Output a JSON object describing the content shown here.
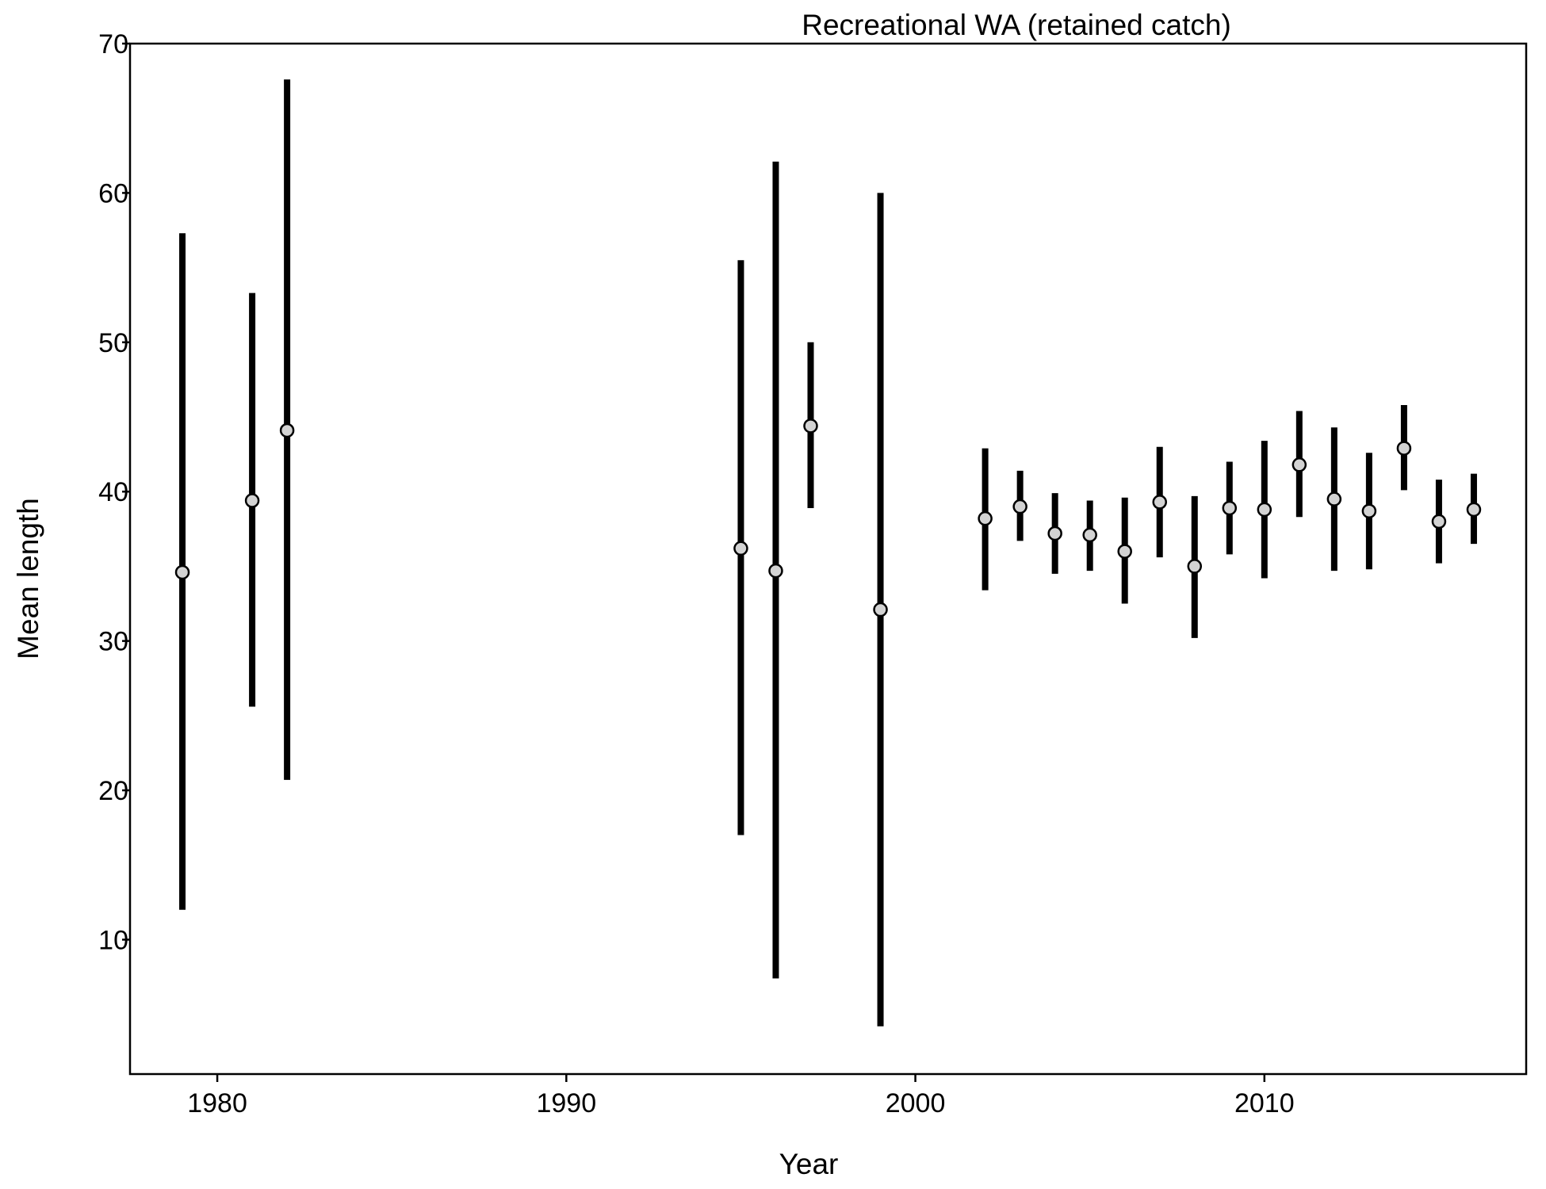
{
  "chart_data": {
    "type": "scatter",
    "title": "Recreational WA (retained catch)",
    "xlabel": "Year",
    "ylabel": "Mean length",
    "xlim": [
      1977.5,
      2017.5
    ],
    "ylim": [
      1.0,
      70.0
    ],
    "x_ticks": [
      1980,
      1990,
      2000,
      2010
    ],
    "y_ticks": [
      10,
      20,
      30,
      40,
      50,
      60,
      70
    ],
    "grid": false,
    "legend": "none",
    "colors": {
      "interval": "#000000",
      "point_fill": "#d3d3d3",
      "point_stroke": "#000000",
      "axis": "#000000"
    },
    "series": [
      {
        "points": [
          {
            "x": 1979,
            "y": 34.6,
            "low": 12.0,
            "high": 57.3
          },
          {
            "x": 1981,
            "y": 39.4,
            "low": 25.6,
            "high": 53.3
          },
          {
            "x": 1982,
            "y": 44.1,
            "low": 20.7,
            "high": 67.6
          },
          {
            "x": 1995,
            "y": 36.2,
            "low": 17.0,
            "high": 55.5
          },
          {
            "x": 1996,
            "y": 34.7,
            "low": 7.4,
            "high": 62.1
          },
          {
            "x": 1997,
            "y": 44.4,
            "low": 38.9,
            "high": 50.0
          },
          {
            "x": 1999,
            "y": 32.1,
            "low": 4.2,
            "high": 60.0
          },
          {
            "x": 2002,
            "y": 38.2,
            "low": 33.4,
            "high": 42.9
          },
          {
            "x": 2003,
            "y": 39.0,
            "low": 36.7,
            "high": 41.4
          },
          {
            "x": 2004,
            "y": 37.2,
            "low": 34.5,
            "high": 39.9
          },
          {
            "x": 2005,
            "y": 37.1,
            "low": 34.7,
            "high": 39.4
          },
          {
            "x": 2006,
            "y": 36.0,
            "low": 32.5,
            "high": 39.6
          },
          {
            "x": 2007,
            "y": 39.3,
            "low": 35.6,
            "high": 43.0
          },
          {
            "x": 2008,
            "y": 35.0,
            "low": 30.2,
            "high": 39.7
          },
          {
            "x": 2009,
            "y": 38.9,
            "low": 35.8,
            "high": 42.0
          },
          {
            "x": 2010,
            "y": 38.8,
            "low": 34.2,
            "high": 43.4
          },
          {
            "x": 2011,
            "y": 41.8,
            "low": 38.3,
            "high": 45.4
          },
          {
            "x": 2012,
            "y": 39.5,
            "low": 34.7,
            "high": 44.3
          },
          {
            "x": 2013,
            "y": 38.7,
            "low": 34.8,
            "high": 42.6
          },
          {
            "x": 2014,
            "y": 42.9,
            "low": 40.1,
            "high": 45.8
          },
          {
            "x": 2015,
            "y": 38.0,
            "low": 35.2,
            "high": 40.8
          },
          {
            "x": 2016,
            "y": 38.8,
            "low": 36.5,
            "high": 41.2
          }
        ]
      }
    ]
  }
}
